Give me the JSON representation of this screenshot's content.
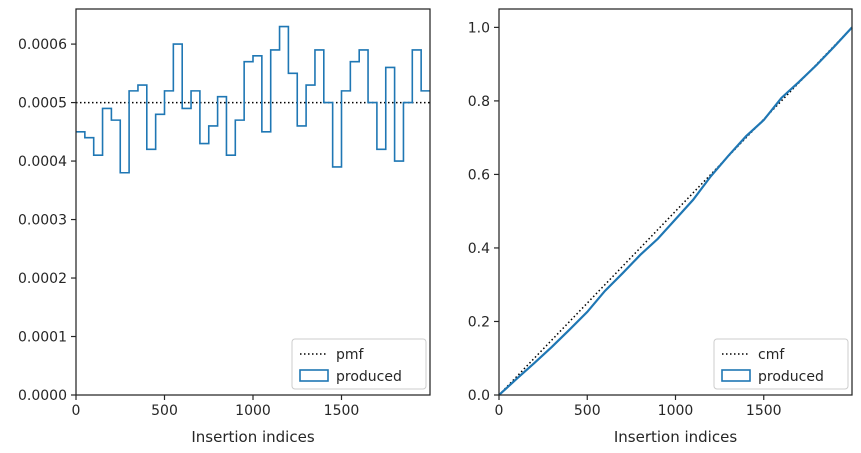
{
  "chart_data": [
    {
      "type": "line",
      "xlabel": "Insertion indices",
      "xlim": [
        0,
        2000
      ],
      "ylim": [
        0,
        0.00066
      ],
      "xticks": [
        0,
        500,
        1000,
        1500
      ],
      "xtick_labels": [
        "0",
        "500",
        "1000",
        "1500"
      ],
      "yticks": [
        0,
        0.0001,
        0.0002,
        0.0003,
        0.0004,
        0.0005,
        0.0006
      ],
      "ytick_labels": [
        "0.0000",
        "0.0001",
        "0.0002",
        "0.0003",
        "0.0004",
        "0.0005",
        "0.0006"
      ],
      "legend": "lower right",
      "series": [
        {
          "name": "pmf",
          "style": "dotted",
          "color": "#000000",
          "x": [
            0,
            2000
          ],
          "y": [
            0.0005,
            0.0005
          ]
        },
        {
          "name": "produced",
          "style": "step",
          "color": "#1f77b4",
          "bin_width": 50,
          "values": [
            0.00045,
            0.00044,
            0.00041,
            0.00049,
            0.00047,
            0.00038,
            0.00052,
            0.00053,
            0.00042,
            0.00048,
            0.00052,
            0.0006,
            0.00049,
            0.00052,
            0.00043,
            0.00046,
            0.00051,
            0.00041,
            0.00047,
            0.00057,
            0.00058,
            0.00045,
            0.00059,
            0.00063,
            0.00055,
            0.00046,
            0.00053,
            0.00059,
            0.0005,
            0.00039,
            0.00052,
            0.00057,
            0.00059,
            0.0005,
            0.00042,
            0.00056,
            0.0004,
            0.0005,
            0.00059,
            0.00052
          ]
        }
      ]
    },
    {
      "type": "line",
      "xlabel": "Insertion indices",
      "xlim": [
        0,
        2000
      ],
      "ylim": [
        0,
        1.05
      ],
      "xticks": [
        0,
        500,
        1000,
        1500
      ],
      "xtick_labels": [
        "0",
        "500",
        "1000",
        "1500"
      ],
      "yticks": [
        0,
        0.2,
        0.4,
        0.6,
        0.8,
        1.0
      ],
      "ytick_labels": [
        "0.0",
        "0.2",
        "0.4",
        "0.6",
        "0.8",
        "1.0"
      ],
      "legend": "lower right",
      "series": [
        {
          "name": "cmf",
          "style": "dotted",
          "color": "#000000",
          "x": [
            0,
            2000
          ],
          "y": [
            0,
            1.0
          ]
        },
        {
          "name": "produced",
          "style": "solid",
          "color": "#1f77b4",
          "x": [
            0,
            100,
            200,
            300,
            400,
            500,
            600,
            700,
            800,
            900,
            1000,
            1100,
            1200,
            1300,
            1400,
            1500,
            1600,
            1700,
            1800,
            1900,
            2000
          ],
          "y": [
            0,
            0.044,
            0.087,
            0.131,
            0.178,
            0.226,
            0.283,
            0.331,
            0.381,
            0.425,
            0.478,
            0.531,
            0.595,
            0.651,
            0.704,
            0.748,
            0.808,
            0.852,
            0.898,
            0.948,
            1.0
          ]
        }
      ]
    }
  ]
}
